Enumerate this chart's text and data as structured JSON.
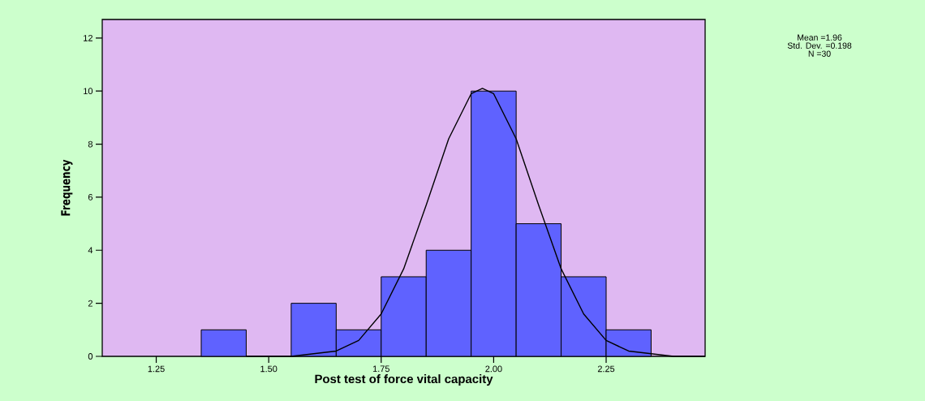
{
  "chart_data": {
    "type": "histogram",
    "xlabel": "Post test of force vital capacity",
    "ylabel": "Frequency",
    "bins": [
      1.35,
      1.45,
      1.55,
      1.65,
      1.75,
      1.85,
      1.95,
      2.05,
      2.15,
      2.25,
      2.35
    ],
    "values": [
      1,
      0,
      2,
      1,
      3,
      4,
      10,
      5,
      3,
      1
    ],
    "color": "#5f62ff",
    "series": [
      {
        "type": "line",
        "color": "#000000",
        "x": [
          1.45,
          1.5,
          1.55,
          1.6,
          1.65,
          1.7,
          1.75,
          1.8,
          1.85,
          1.9,
          1.95,
          1.975,
          2.0,
          2.05,
          2.1,
          2.15,
          2.2,
          2.25,
          2.3,
          2.35,
          2.4,
          2.45,
          2.47
        ],
        "values": [
          0,
          0,
          0,
          0.1,
          0.2,
          0.6,
          1.6,
          3.3,
          5.7,
          8.2,
          9.9,
          10.1,
          9.9,
          8.2,
          5.7,
          3.3,
          1.6,
          0.6,
          0.2,
          0.1,
          0,
          0,
          0
        ]
      }
    ],
    "xlim": [
      1.13,
      2.47
    ],
    "ylim": [
      0,
      12.7
    ],
    "xticks": [
      {
        "value": 1.25,
        "label": "1.25"
      },
      {
        "value": 1.5,
        "label": "1.50"
      },
      {
        "value": 1.75,
        "label": "1.75"
      },
      {
        "value": 2.0,
        "label": "2.00"
      },
      {
        "value": 2.25,
        "label": "2.25"
      }
    ],
    "yticks": [
      0,
      2,
      4,
      6,
      8,
      10,
      12
    ],
    "annotations": [
      "Mean =1.96\nStd. Dev. =0.198\nN =30"
    ],
    "grid": false
  }
}
